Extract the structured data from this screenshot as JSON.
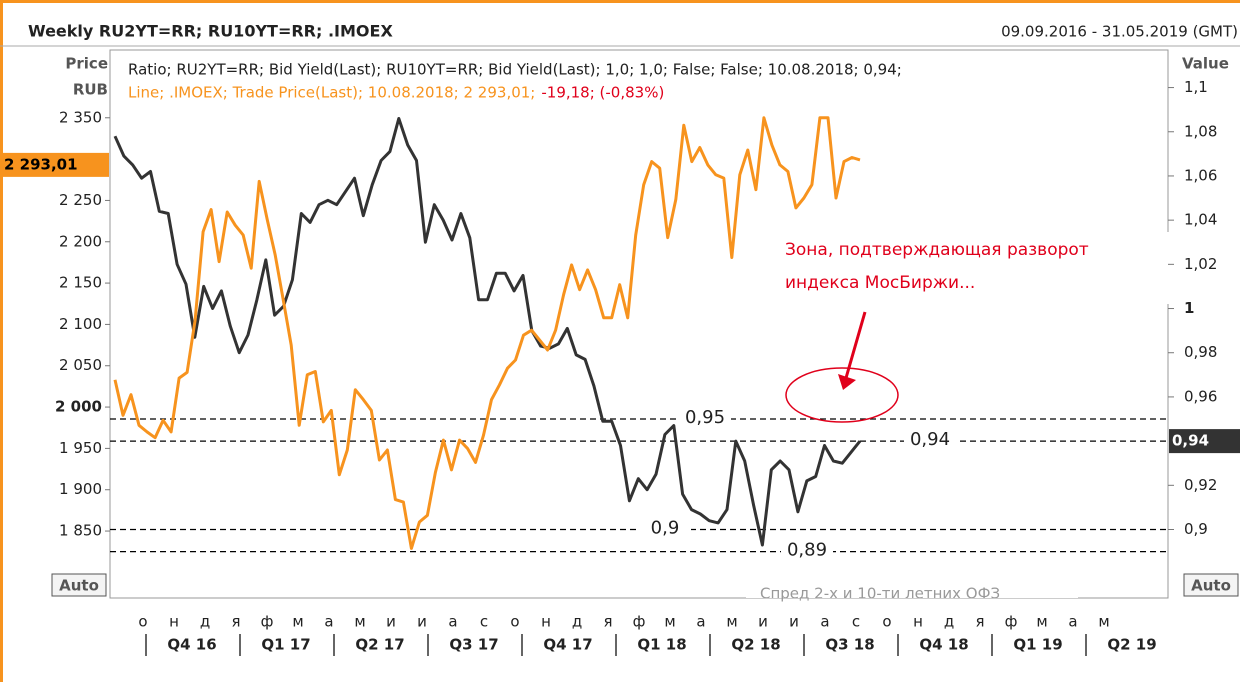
{
  "chart_data": {
    "type": "line",
    "title": "Weekly RU2YT=RR; RU10YT=RR; .IMOEX",
    "date_range": "09.09.2016 - 31.05.2019 (GMT)",
    "ylabel": [
      "Price",
      "RUB"
    ],
    "y2label": "Value",
    "auto_button": "Auto",
    "ylim": [
      1769,
      2432
    ],
    "yticks": [
      {
        "value": 1850,
        "label": "1 850"
      },
      {
        "value": 1900,
        "label": "1 900"
      },
      {
        "value": 1950,
        "label": "1 950"
      },
      {
        "value": 2000,
        "label": "2 000"
      },
      {
        "value": 2050,
        "label": "2 050"
      },
      {
        "value": 2100,
        "label": "2 100"
      },
      {
        "value": 2150,
        "label": "2 150"
      },
      {
        "value": 2200,
        "label": "2 200"
      },
      {
        "value": 2250,
        "label": "2 250"
      },
      {
        "value": 2350,
        "label": "2 350"
      }
    ],
    "y2lim": [
      0.869,
      1.117
    ],
    "y2ticks": [
      {
        "value": 0.9,
        "label": "0,9"
      },
      {
        "value": 0.92,
        "label": "0,92"
      },
      {
        "value": 0.96,
        "label": "0,96"
      },
      {
        "value": 0.98,
        "label": "0,98"
      },
      1,
      {
        "value": 1.02,
        "label": "1,02"
      },
      {
        "value": 1.04,
        "label": "1,04"
      },
      {
        "value": 1.06,
        "label": "1,06"
      },
      {
        "value": 1.08,
        "label": "1,08"
      },
      {
        "value": 1.1,
        "label": "1,1"
      }
    ],
    "months": [
      "о",
      "н",
      "д",
      "я",
      "ф",
      "м",
      "а",
      "м",
      "и",
      "и",
      "а",
      "с",
      "о",
      "н",
      "д",
      "я",
      "ф",
      "м",
      "а",
      "м",
      "и",
      "и",
      "а",
      "с",
      "о",
      "н",
      "д",
      "я",
      "ф",
      "м",
      "а",
      "м"
    ],
    "quarters": [
      "Q4 16",
      "Q1 17",
      "Q2 17",
      "Q3 17",
      "Q4 17",
      "Q1 18",
      "Q2 18",
      "Q3 18",
      "Q4 18",
      "Q1 19",
      "Q2 19"
    ],
    "series": [
      {
        "name": "Ratio; RU2YT=RR; Bid Yield(Last); RU10YT=RR; Bid Yield(Last);  1,0; 1,0; False; False; 10.08.2018; 0,94;",
        "color": "#333333",
        "axis": "y2",
        "last_label": {
          "value": 0.94,
          "label": "0,94"
        },
        "values": [
          1.078,
          1.069,
          1.065,
          1.059,
          1.062,
          1.044,
          1.043,
          1.02,
          1.011,
          0.987,
          1.01,
          1.0,
          1.008,
          0.992,
          0.98,
          0.988,
          1.004,
          1.022,
          0.997,
          1.001,
          1.013,
          1.043,
          1.039,
          1.047,
          1.049,
          1.047,
          1.053,
          1.059,
          1.042,
          1.056,
          1.067,
          1.071,
          1.086,
          1.074,
          1.067,
          1.03,
          1.047,
          1.04,
          1.031,
          1.043,
          1.032,
          1.004,
          1.004,
          1.016,
          1.016,
          1.008,
          1.015,
          0.99,
          0.983,
          0.982,
          0.984,
          0.991,
          0.979,
          0.977,
          0.965,
          0.949,
          0.949,
          0.938,
          0.913,
          0.923,
          0.918,
          0.925,
          0.943,
          0.947,
          0.916,
          0.909,
          0.907,
          0.904,
          0.903,
          0.909,
          0.94,
          0.931,
          0.911,
          0.893,
          0.927,
          0.931,
          0.927,
          0.908,
          0.922,
          0.924,
          0.938,
          0.931,
          0.93,
          0.935,
          0.94
        ]
      },
      {
        "name": "Line; .IMOEX; Trade Price(Last);  10.08.2018; 2 293,01;",
        "change": "-19,18; (-0,83%)",
        "color": "#f7931e",
        "axis": "y",
        "last_label": {
          "value": 2293.01,
          "label": "2 293,01"
        },
        "values": [
          2033,
          1990,
          2015,
          1978,
          1970,
          1963,
          1984,
          1970,
          2035,
          2042,
          2105,
          2212,
          2239,
          2176,
          2236,
          2220,
          2208,
          2168,
          2273,
          2227,
          2184,
          2130,
          2075,
          1978,
          2039,
          2043,
          1982,
          1996,
          1918,
          1948,
          2021,
          2009,
          1996,
          1936,
          1948,
          1888,
          1885,
          1829,
          1861,
          1869,
          1921,
          1960,
          1924,
          1960,
          1950,
          1933,
          1966,
          2009,
          2027,
          2047,
          2057,
          2087,
          2093,
          2081,
          2069,
          2093,
          2136,
          2172,
          2142,
          2166,
          2142,
          2108,
          2108,
          2148,
          2108,
          2208,
          2269,
          2297,
          2289,
          2205,
          2251,
          2341,
          2297,
          2314,
          2293,
          2281,
          2277,
          2181,
          2281,
          2311,
          2263,
          2350,
          2317,
          2293,
          2285,
          2241,
          2253,
          2269,
          2350,
          2350,
          2253,
          2297,
          2302,
          2299
        ]
      }
    ],
    "reference_lines": [
      {
        "value": 0.95,
        "label": "0,95"
      },
      {
        "value": 0.94,
        "label": "0,94"
      },
      {
        "value": 0.9,
        "label": "0,9"
      },
      {
        "value": 0.89,
        "label": "0,89"
      }
    ],
    "annotation": [
      "Зона, подтверждающая разворот",
      "индекса МосБиржи..."
    ],
    "footnote": "Спред 2-х и 10-ти летних ОФЗ"
  }
}
